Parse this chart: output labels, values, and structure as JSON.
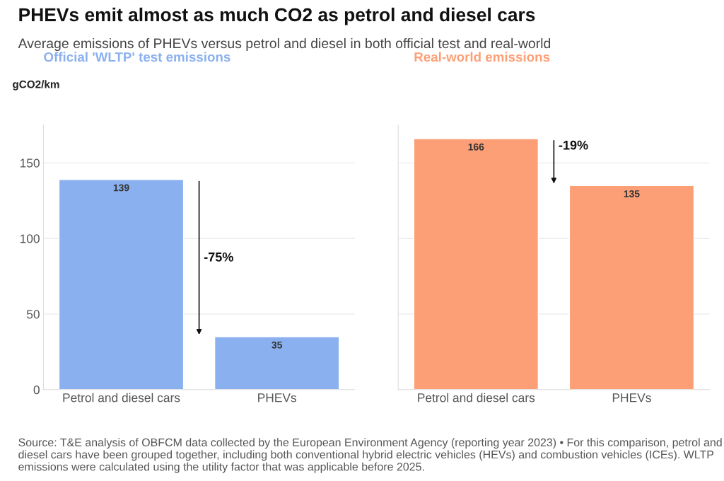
{
  "chart_data": [
    {
      "type": "other",
      "title": "PHEVs emit almost as much CO2 as petrol and diesel cars",
      "subtitle": "Average emissions of PHEVs versus petrol and diesel in both official test and real-world"
    },
    {
      "type": "bar",
      "title": "Official 'WLTP' test emissions",
      "ylabel": "gCO2/km",
      "categories": [
        "Petrol and diesel cars",
        "PHEVs"
      ],
      "values": [
        139,
        35
      ],
      "color": "#8ab0ef",
      "ylim": [
        0,
        175
      ],
      "yticks": [
        0,
        50,
        100,
        150
      ],
      "grid": "y",
      "data_labels": true,
      "annotations": [
        "-75%"
      ]
    },
    {
      "type": "bar",
      "title": "Real-world emissions",
      "categories": [
        "Petrol and diesel cars",
        "PHEVs"
      ],
      "values": [
        166,
        135
      ],
      "color": "#fc9f77",
      "ylim": [
        0,
        175
      ],
      "yticks": [
        0,
        50,
        100,
        150
      ],
      "grid": "y",
      "data_labels": true,
      "tick_labels": "x",
      "annotations": [
        "-19%",
        "Source: T&E analysis of OBFCM data collected by the European Environment Agency (reporting year 2023) • For this comparison, petrol and diesel cars have been grouped together, including both conventional hybrid electric vehicles (HEVs) and combustion vehicles (ICEs). WLTP emissions were calculated using the utility factor that was applicable before 2025."
      ]
    }
  ]
}
